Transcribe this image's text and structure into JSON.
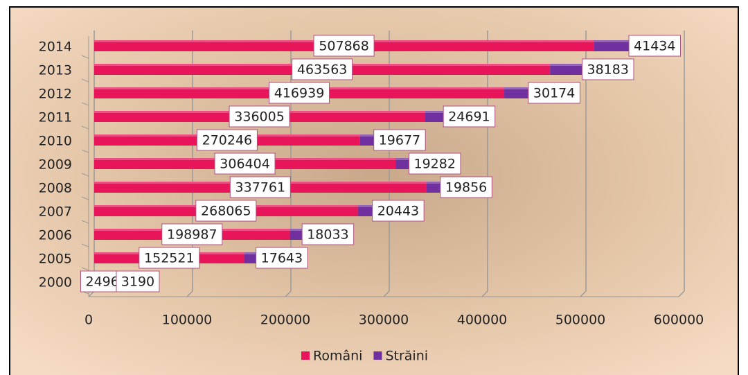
{
  "chart_data": {
    "type": "bar",
    "orientation": "horizontal",
    "stacked": true,
    "categories": [
      "2000",
      "2005",
      "2006",
      "2007",
      "2008",
      "2009",
      "2010",
      "2011",
      "2012",
      "2013",
      "2014"
    ],
    "series": [
      {
        "name": "Români",
        "color": "#e8155a",
        "values": [
          24962,
          152521,
          198987,
          268065,
          337761,
          306404,
          270246,
          336005,
          416939,
          463563,
          507868
        ]
      },
      {
        "name": "Străini",
        "color": "#7030a0",
        "values": [
          3190,
          17643,
          18033,
          20443,
          19856,
          19282,
          19677,
          24691,
          30174,
          38183,
          41434
        ]
      }
    ],
    "xlim": [
      0,
      600000
    ],
    "xticks": [
      0,
      100000,
      200000,
      300000,
      400000,
      500000,
      600000
    ],
    "grid": true,
    "legend": "bottom"
  }
}
